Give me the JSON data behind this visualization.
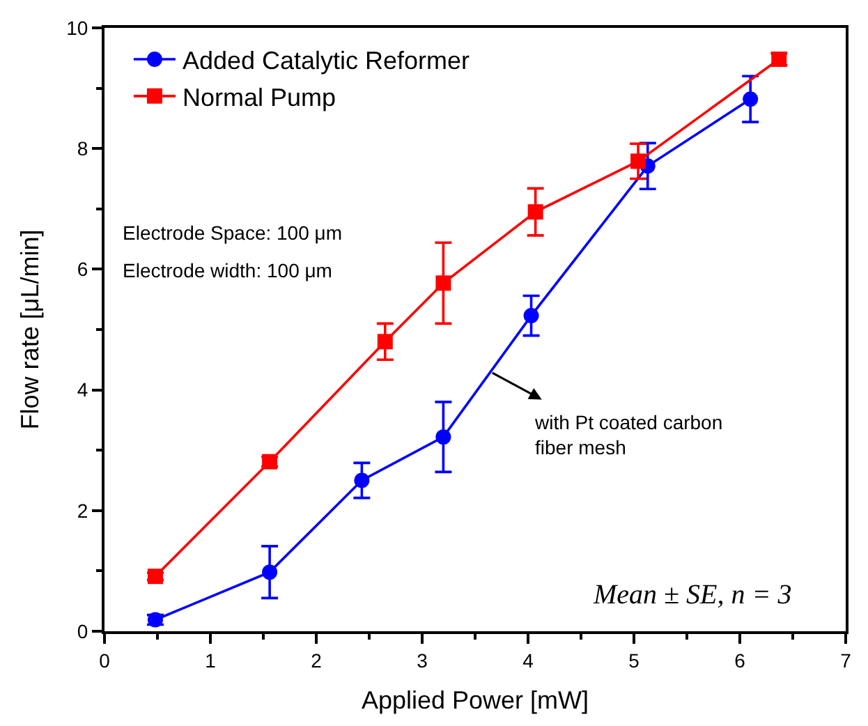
{
  "chart_data": {
    "type": "line",
    "xlabel": "Applied Power [mW]",
    "ylabel": "Flow rate [μL/min]",
    "xlim": [
      0,
      7
    ],
    "xticks": [
      0,
      1,
      2,
      3,
      4,
      5,
      6,
      7
    ],
    "ylim": [
      0,
      10
    ],
    "yticks": [
      0,
      2,
      4,
      6,
      8,
      10
    ],
    "legend": "top left",
    "line_style": "solid",
    "series": [
      {
        "name": "Added Catalytic Reformer",
        "color": "#0000ff",
        "marker": "circle",
        "x": [
          0.48,
          1.56,
          2.43,
          3.2,
          4.03,
          5.13,
          6.1
        ],
        "values": [
          0.19,
          0.98,
          2.5,
          3.22,
          5.23,
          7.71,
          8.82
        ],
        "errors": [
          0.08,
          0.43,
          0.29,
          0.58,
          0.33,
          0.38,
          0.38
        ]
      },
      {
        "name": "Normal Pump",
        "color": "#ff0000",
        "marker": "square",
        "x": [
          0.48,
          1.56,
          2.65,
          3.2,
          4.07,
          5.04,
          6.37
        ],
        "values": [
          0.91,
          2.81,
          4.8,
          5.77,
          6.95,
          7.79,
          9.48
        ],
        "errors": [
          0.06,
          0.08,
          0.3,
          0.67,
          0.39,
          0.29,
          0.1
        ]
      }
    ],
    "annotations": [
      "Electrode Space: 100 μm",
      "Electrode width: 100 μm",
      "with Pt coated carbon fiber mesh",
      "Mean ± SE, n = 3"
    ]
  }
}
